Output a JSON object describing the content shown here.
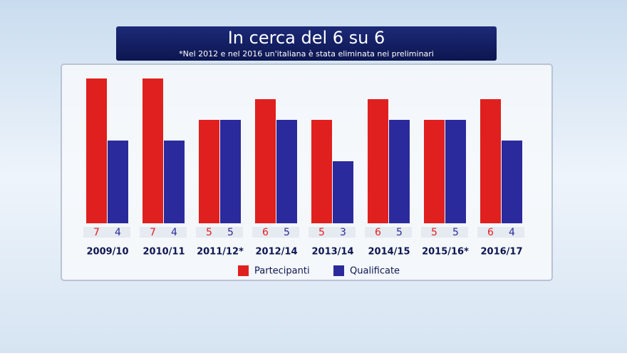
{
  "chart_data": {
    "type": "bar",
    "title": "In cerca del 6 su 6",
    "subtitle": "*Nel 2012 e nel 2016 un'italiana è stata eliminata nei preliminari",
    "categories": [
      "2009/10",
      "2010/11",
      "2011/12*",
      "2012/14",
      "2013/14",
      "2014/15",
      "2015/16*",
      "2016/17"
    ],
    "series": [
      {
        "name": "Partecipanti",
        "color": "#e0201e",
        "values": [
          7,
          7,
          5,
          6,
          5,
          6,
          5,
          6
        ]
      },
      {
        "name": "Qualificate",
        "color": "#2a2a9c",
        "values": [
          4,
          4,
          5,
          5,
          3,
          5,
          5,
          4
        ]
      }
    ]
  }
}
